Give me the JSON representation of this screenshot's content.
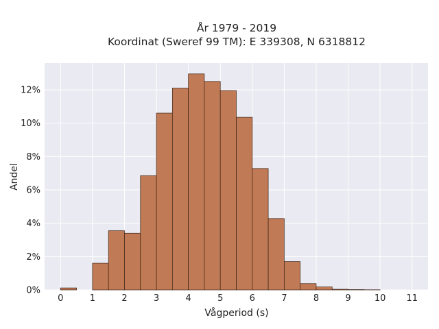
{
  "chart_data": {
    "type": "bar",
    "title_line1": "År 1979 - 2019",
    "title_line2": "Koordinat (Sweref 99 TM): E 339308, N 6318812",
    "xlabel": "Vågperiod (s)",
    "ylabel": "Andel",
    "bin_width": 0.5,
    "bins": [
      {
        "start": 0.0,
        "value": 0.12
      },
      {
        "start": 0.5,
        "value": 0.0
      },
      {
        "start": 1.0,
        "value": 1.6
      },
      {
        "start": 1.5,
        "value": 3.55
      },
      {
        "start": 2.0,
        "value": 3.4
      },
      {
        "start": 2.5,
        "value": 6.85
      },
      {
        "start": 3.0,
        "value": 10.6
      },
      {
        "start": 3.5,
        "value": 12.1
      },
      {
        "start": 4.0,
        "value": 12.95
      },
      {
        "start": 4.5,
        "value": 12.5
      },
      {
        "start": 5.0,
        "value": 11.95
      },
      {
        "start": 5.5,
        "value": 10.35
      },
      {
        "start": 6.0,
        "value": 7.28
      },
      {
        "start": 6.5,
        "value": 4.28
      },
      {
        "start": 7.0,
        "value": 1.7
      },
      {
        "start": 7.5,
        "value": 0.38
      },
      {
        "start": 8.0,
        "value": 0.18
      },
      {
        "start": 8.5,
        "value": 0.04
      },
      {
        "start": 9.0,
        "value": 0.02
      },
      {
        "start": 9.5,
        "value": 0.01
      }
    ],
    "x_ticks": [
      "0",
      "1",
      "2",
      "3",
      "4",
      "5",
      "6",
      "7",
      "8",
      "9",
      "10",
      "11"
    ],
    "y_ticks": [
      "0%",
      "2%",
      "4%",
      "6%",
      "8%",
      "10%",
      "12%"
    ],
    "y_tick_values": [
      0,
      2,
      4,
      6,
      8,
      10,
      12
    ],
    "xlim": [
      -0.5,
      11.5
    ],
    "ylim": [
      0,
      13.6
    ],
    "grid": true,
    "bar_color": "#c07a55",
    "bar_edge_color": "#3d2418",
    "plot_background": "#eaeaf2",
    "grid_color": "#ffffff"
  }
}
